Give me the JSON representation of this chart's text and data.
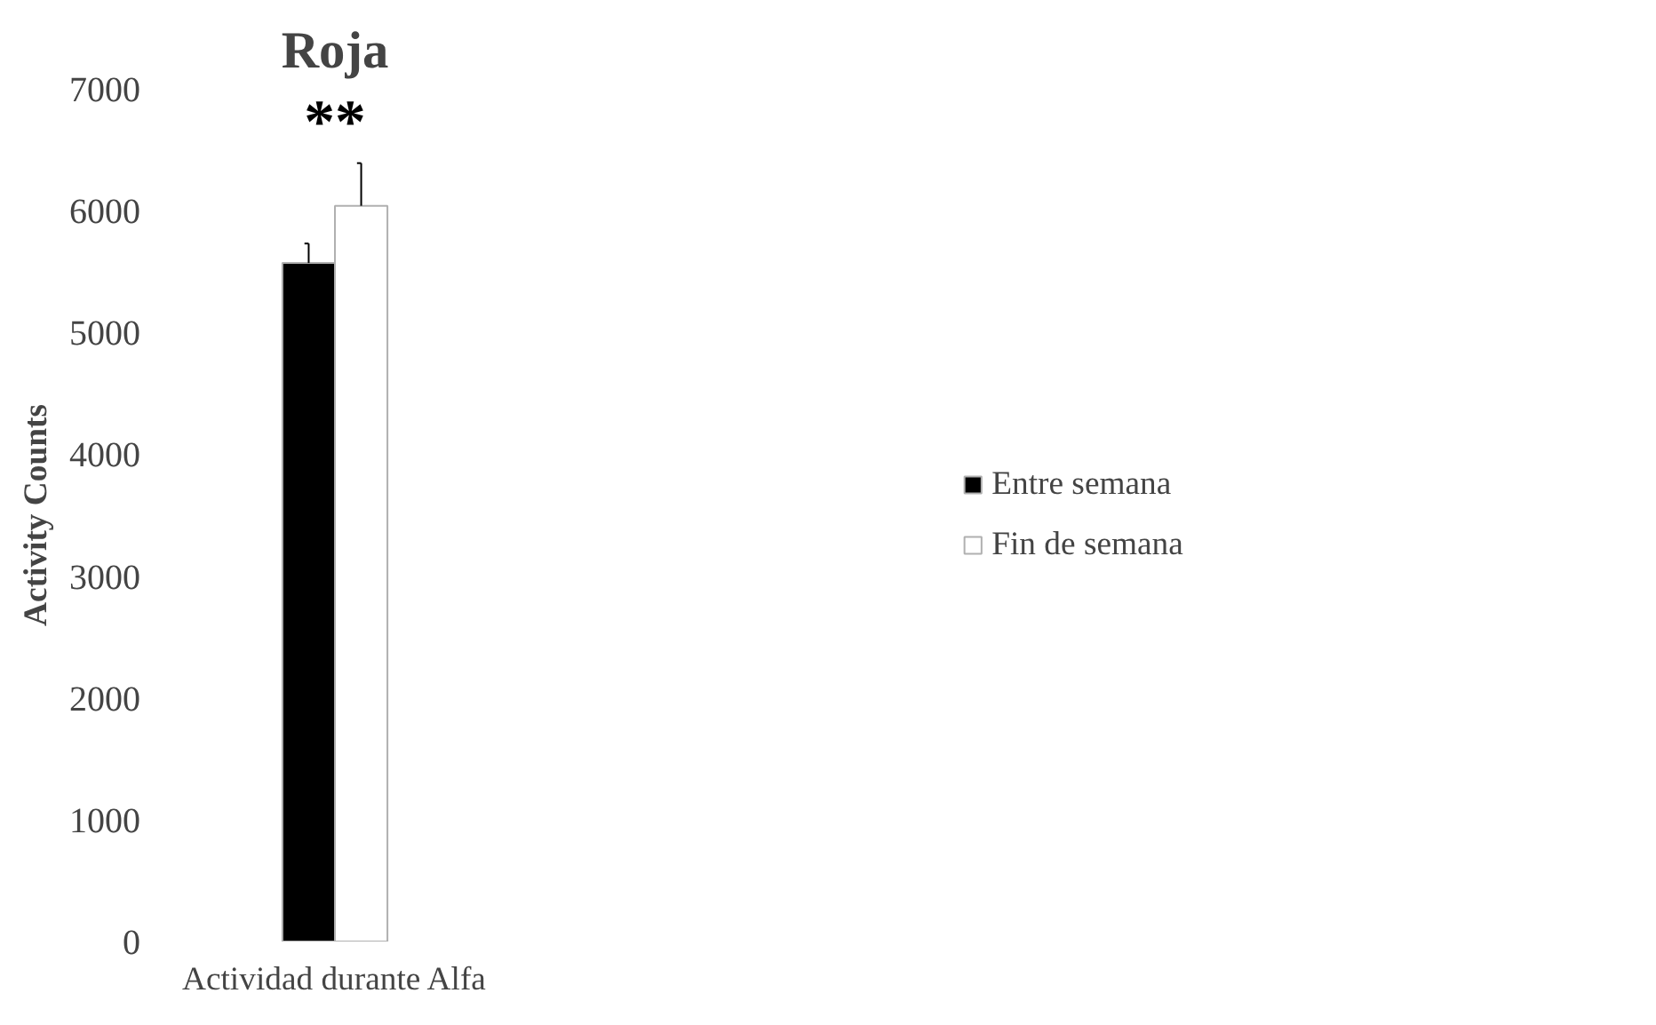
{
  "chart_data": {
    "type": "bar",
    "title": "Roja",
    "ylabel": "Activity Counts",
    "categories": [
      "Actividad durante Alfa"
    ],
    "series": [
      {
        "name": "Entre semana",
        "color": "#000000",
        "values": [
          5570
        ],
        "errors": [
          [
            5570,
            5730
          ]
        ]
      },
      {
        "name": "Fin de semana",
        "color": "#ffffff",
        "values": [
          6040
        ],
        "errors": [
          [
            6040,
            6390
          ]
        ]
      }
    ],
    "ylim": [
      0,
      7000
    ],
    "yticks": [
      0,
      1000,
      2000,
      3000,
      4000,
      5000,
      6000,
      7000
    ],
    "grid": false,
    "legend": "right",
    "annotations": [
      "**"
    ]
  }
}
